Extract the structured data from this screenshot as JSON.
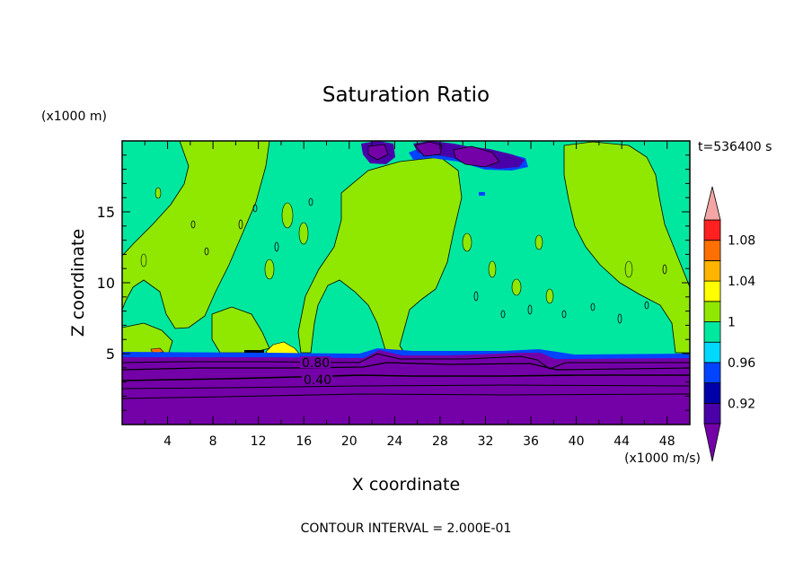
{
  "chart_data": {
    "type": "heatmap",
    "title": "Saturation Ratio",
    "xlabel": "X coordinate",
    "ylabel": "Z coordinate",
    "x_unit": "(x1000 m/s)",
    "y_unit": "(x1000 m)",
    "time_label": "t=536400 s",
    "footer": "CONTOUR INTERVAL = 2.000E-01",
    "xlim": [
      0,
      50
    ],
    "ylim": [
      0,
      20
    ],
    "x_ticks": [
      "4",
      "8",
      "12",
      "16",
      "20",
      "24",
      "28",
      "32",
      "36",
      "40",
      "44",
      "48"
    ],
    "y_ticks": [
      "5",
      "10",
      "15"
    ],
    "colorbar": {
      "levels": [
        0.9,
        0.92,
        0.94,
        0.96,
        0.98,
        1.0,
        1.02,
        1.04,
        1.06,
        1.08,
        1.1
      ],
      "tick_labels": [
        "0.92",
        "0.96",
        "1",
        "1.04",
        "1.08"
      ],
      "under_color": "#7400a8",
      "over_color": "#f4a6a6",
      "colors": [
        "#4a00a8",
        "#0000a8",
        "#0044ff",
        "#00d8ff",
        "#00e8a0",
        "#90e800",
        "#ffff00",
        "#ffb400",
        "#ff7000",
        "#ff2020"
      ]
    },
    "contour_labels": [
      "0.80",
      "0.40"
    ]
  }
}
